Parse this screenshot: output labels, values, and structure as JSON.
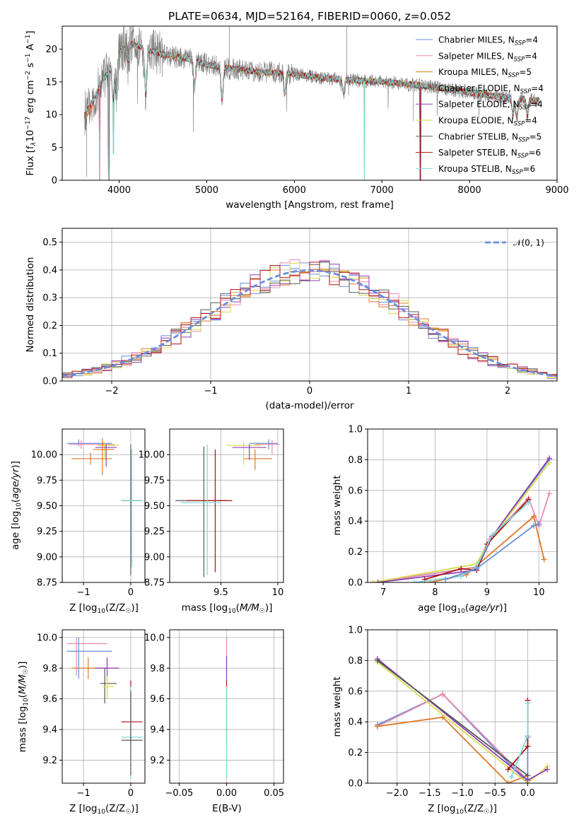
{
  "figure_title": "PLATE=0634, MJD=52164, FIBERID=0060, z=0.052",
  "colors": {
    "chabrier_miles": "#6b8fd6",
    "salpeter_miles": "#e88bb0",
    "kroupa_miles": "#c8841a",
    "chabrier_elodie": "#555555",
    "salpeter_elodie": "#8e3fb5",
    "kroupa_elodie": "#d6dc4a",
    "chabrier_stelib": "#5a5a5a",
    "salpeter_stelib": "#b01010",
    "kroupa_stelib": "#7fd8d8",
    "orange": "#e07828",
    "gauss": "#6a8fe0"
  },
  "chart_data": [
    {
      "type": "line",
      "panel": "spectrum",
      "xlabel": "wavelength [Angstrom, rest frame]",
      "ylabel": "Flux [f_λ 10^-17 erg cm^-2 s^-1 A^-1]",
      "xlim": [
        3350,
        9000
      ],
      "ylim": [
        0,
        23.5
      ],
      "xticks": [
        4000,
        5000,
        6000,
        7000,
        8000,
        9000
      ],
      "yticks": [
        0,
        5,
        10,
        15,
        20
      ],
      "grid": false,
      "legend_position": "top-right",
      "legend": [
        {
          "text": "Chabrier MILES, N_SSP=4",
          "color_key": "chabrier_miles"
        },
        {
          "text": "Salpeter MILES, N_SSP=4",
          "color_key": "salpeter_miles"
        },
        {
          "text": "Kroupa MILES, N_SSP=5",
          "color_key": "kroupa_miles"
        },
        {
          "text": "Chabrier ELODIE, N_SSP=4",
          "color_key": "chabrier_elodie"
        },
        {
          "text": "Salpeter ELODIE, N_SSP=4",
          "color_key": "salpeter_elodie"
        },
        {
          "text": "Kroupa ELODIE, N_SSP=4",
          "color_key": "kroupa_elodie"
        },
        {
          "text": "Chabrier STELIB, N_SSP=5",
          "color_key": "chabrier_stelib"
        },
        {
          "text": "Salpeter STELIB, N_SSP=6",
          "color_key": "salpeter_stelib"
        },
        {
          "text": "Kroupa STELIB, N_SSP=6",
          "color_key": "kroupa_stelib"
        }
      ],
      "continuum": {
        "x": [
          3600,
          3700,
          3800,
          3900,
          4000,
          4100,
          4300,
          4500,
          4800,
          5000,
          5300,
          5600,
          6000,
          6300,
          6600,
          7000,
          7400,
          7800,
          8200,
          8600,
          8800
        ],
        "y": [
          10,
          12,
          15,
          17,
          19.5,
          21,
          20,
          19.2,
          18.5,
          17.6,
          17,
          16.5,
          16.2,
          15.6,
          15.3,
          15,
          14.5,
          13.8,
          13,
          12.4,
          12.1
        ]
      },
      "absorption_features": [
        {
          "x": 3933,
          "depth": 6
        },
        {
          "x": 3968,
          "depth": 5
        },
        {
          "x": 4102,
          "depth": 3
        },
        {
          "x": 4304,
          "depth": 7
        },
        {
          "x": 4861,
          "depth": 4
        },
        {
          "x": 5175,
          "depth": 5
        },
        {
          "x": 5890,
          "depth": 3
        },
        {
          "x": 6563,
          "depth": 2
        },
        {
          "x": 8498,
          "depth": 2.5
        },
        {
          "x": 8542,
          "depth": 3
        },
        {
          "x": 8662,
          "depth": 2.5
        }
      ],
      "model_dropouts": [
        {
          "x": 3775,
          "to": 0
        },
        {
          "x": 3880,
          "to": 0
        },
        {
          "x": 3935,
          "to": 4
        },
        {
          "x": 6800,
          "to": 0
        },
        {
          "x": 7440,
          "to": 0
        }
      ]
    },
    {
      "type": "line",
      "panel": "residuals",
      "xlabel": "(data-model)/error",
      "ylabel": "Normed distribution",
      "xlim": [
        -2.5,
        2.5
      ],
      "ylim": [
        0,
        0.55
      ],
      "xticks": [
        -2,
        -1,
        0,
        1,
        2
      ],
      "yticks": [
        0.0,
        0.1,
        0.2,
        0.3,
        0.4,
        0.5
      ],
      "grid": true,
      "legend_position": "top-right",
      "legend": [
        {
          "text": "𝒩(0, 1)",
          "color_key": "gauss"
        }
      ],
      "bin_width": 0.1,
      "histograms": [
        {
          "color_key": "chabrier_miles",
          "seed": 3
        },
        {
          "color_key": "salpeter_miles",
          "seed": 7
        },
        {
          "color_key": "orange",
          "seed": 11
        },
        {
          "color_key": "salpeter_elodie",
          "seed": 13
        },
        {
          "color_key": "kroupa_elodie",
          "seed": 17
        },
        {
          "color_key": "chabrier_stelib",
          "seed": 19
        },
        {
          "color_key": "salpeter_stelib",
          "seed": 23
        }
      ]
    },
    {
      "type": "scatter",
      "panel": "age_vs_Z",
      "xlabel": "Z [log10(Z/Z☉)]",
      "ylabel": "age  [log10(age/yr)]",
      "xlim": [
        -1.45,
        0.3
      ],
      "ylim": [
        8.75,
        10.25
      ],
      "xticks": [
        -1,
        0
      ],
      "yticks": [
        8.75,
        9.0,
        9.25,
        9.5,
        9.75,
        10.0
      ],
      "grid": true,
      "points": [
        {
          "x": -1.1,
          "y": 10.11,
          "ex": [
            -1.35,
            -0.4
          ],
          "ey": [
            10.08,
            10.15
          ],
          "color_key": "chabrier_miles"
        },
        {
          "x": -1.05,
          "y": 10.1,
          "ex": [
            -1.3,
            -0.35
          ],
          "ey": [
            10.06,
            10.14
          ],
          "color_key": "salpeter_miles"
        },
        {
          "x": -0.85,
          "y": 9.96,
          "ex": [
            -1.25,
            -0.4
          ],
          "ey": [
            9.9,
            10.02
          ],
          "color_key": "orange"
        },
        {
          "x": -0.55,
          "y": 10.09,
          "ex": [
            -0.7,
            -0.25
          ],
          "ey": [
            9.95,
            10.12
          ],
          "color_key": "kroupa_elodie"
        },
        {
          "x": -0.52,
          "y": 10.07,
          "ex": [
            -0.75,
            -0.3
          ],
          "ey": [
            9.88,
            10.1
          ],
          "color_key": "salpeter_elodie"
        },
        {
          "x": -0.6,
          "y": 10.05,
          "ex": [
            -0.8,
            -0.35
          ],
          "ey": [
            9.8,
            10.16
          ],
          "color_key": "orange"
        },
        {
          "x": 0.0,
          "y": 9.55,
          "ex": [
            -0.2,
            0.25
          ],
          "ey": [
            8.82,
            10.1
          ],
          "color_key": "chabrier_stelib"
        },
        {
          "x": 0.02,
          "y": 9.55,
          "ex": [
            -0.2,
            0.25
          ],
          "ey": [
            8.9,
            10.05
          ],
          "color_key": "kroupa_stelib"
        }
      ]
    },
    {
      "type": "scatter",
      "panel": "age_vs_mass",
      "xlabel": "mass [log10(M/M☉)]",
      "ylabel": "",
      "xlim": [
        9.05,
        10.05
      ],
      "ylim": [
        8.75,
        10.25
      ],
      "xticks": [
        9.5,
        10.0
      ],
      "yticks": [
        8.75,
        9.0,
        9.25,
        9.5,
        9.75,
        10.0
      ],
      "grid": true,
      "points": [
        {
          "x": 9.92,
          "y": 10.11,
          "ex": [
            9.75,
            10.0
          ],
          "ey": [
            10.05,
            10.15
          ],
          "color_key": "chabrier_miles"
        },
        {
          "x": 9.95,
          "y": 10.1,
          "ex": [
            9.8,
            10.02
          ],
          "ey": [
            10.0,
            10.14
          ],
          "color_key": "salpeter_miles"
        },
        {
          "x": 9.8,
          "y": 9.96,
          "ex": [
            9.7,
            9.95
          ],
          "ey": [
            9.85,
            10.05
          ],
          "color_key": "orange"
        },
        {
          "x": 9.7,
          "y": 10.09,
          "ex": [
            9.55,
            9.85
          ],
          "ey": [
            9.9,
            10.12
          ],
          "color_key": "kroupa_elodie"
        },
        {
          "x": 9.75,
          "y": 10.07,
          "ex": [
            9.6,
            9.9
          ],
          "ey": [
            9.95,
            10.1
          ],
          "color_key": "salpeter_elodie"
        },
        {
          "x": 9.35,
          "y": 9.55,
          "ex": [
            9.1,
            9.55
          ],
          "ey": [
            8.8,
            10.08
          ],
          "color_key": "chabrier_stelib"
        },
        {
          "x": 9.45,
          "y": 9.55,
          "ex": [
            9.2,
            9.6
          ],
          "ey": [
            8.85,
            10.05
          ],
          "color_key": "salpeter_stelib"
        },
        {
          "x": 9.38,
          "y": 9.53,
          "ex": [
            9.15,
            9.5
          ],
          "ey": [
            8.82,
            10.1
          ],
          "color_key": "kroupa_stelib"
        }
      ]
    },
    {
      "type": "line",
      "panel": "mass_weight_vs_age",
      "xlabel": "age  [log10(age/yr)]",
      "ylabel": "mass weight",
      "xlim": [
        6.7,
        10.35
      ],
      "ylim": [
        0,
        1.0
      ],
      "xticks": [
        7,
        8,
        9,
        10
      ],
      "yticks": [
        0.0,
        0.2,
        0.4,
        0.6,
        0.8,
        1.0
      ],
      "grid": true,
      "series": [
        {
          "color_key": "chabrier_miles",
          "x": [
            6.8,
            8.8,
            9.1,
            10.2
          ],
          "y": [
            0.0,
            0.1,
            0.3,
            0.8
          ]
        },
        {
          "color_key": "salpeter_miles",
          "x": [
            6.8,
            8.8,
            9.05,
            9.8,
            10.0,
            10.2
          ],
          "y": [
            0.0,
            0.1,
            0.28,
            0.55,
            0.37,
            0.58
          ]
        },
        {
          "color_key": "orange",
          "x": [
            7.9,
            8.6,
            9.9,
            10.1
          ],
          "y": [
            0.0,
            0.05,
            0.43,
            0.15
          ]
        },
        {
          "color_key": "kroupa_elodie",
          "x": [
            6.8,
            8.8,
            9.0,
            10.2
          ],
          "y": [
            0.0,
            0.12,
            0.25,
            0.78
          ]
        },
        {
          "color_key": "salpeter_elodie",
          "x": [
            6.9,
            8.8,
            9.1,
            10.2
          ],
          "y": [
            0.0,
            0.08,
            0.3,
            0.81
          ]
        },
        {
          "color_key": "salpeter_stelib",
          "x": [
            7.8,
            8.5,
            8.8,
            9.0,
            9.8
          ],
          "y": [
            0.02,
            0.09,
            0.08,
            0.25,
            0.54
          ]
        },
        {
          "color_key": "kroupa_stelib",
          "x": [
            7.6,
            8.5,
            8.8,
            9.1,
            9.8
          ],
          "y": [
            0.0,
            0.04,
            0.1,
            0.31,
            0.52
          ]
        },
        {
          "color_key": "chabrier_miles",
          "x": [
            8.2,
            8.8,
            9.9,
            10.0
          ],
          "y": [
            0.02,
            0.09,
            0.37,
            0.38
          ]
        }
      ]
    },
    {
      "type": "scatter",
      "panel": "mass_vs_Z",
      "xlabel": "Z [log10(Z/Z☉)]",
      "ylabel": "mass [log10(M/M☉)]",
      "xlim": [
        -1.45,
        0.3
      ],
      "ylim": [
        9.05,
        10.05
      ],
      "xticks": [
        -1,
        0
      ],
      "yticks": [
        9.2,
        9.4,
        9.6,
        9.8,
        10.0
      ],
      "grid": true,
      "points": [
        {
          "x": -1.15,
          "y": 9.96,
          "ex": [
            -1.35,
            -0.5
          ],
          "ey": [
            9.75,
            10.0
          ],
          "color_key": "salpeter_miles"
        },
        {
          "x": -1.1,
          "y": 9.91,
          "ex": [
            -1.35,
            -0.4
          ],
          "ey": [
            9.73,
            10.0
          ],
          "color_key": "chabrier_miles"
        },
        {
          "x": -0.9,
          "y": 9.8,
          "ex": [
            -1.25,
            -0.45
          ],
          "ey": [
            9.73,
            9.87
          ],
          "color_key": "orange"
        },
        {
          "x": -0.5,
          "y": 9.8,
          "ex": [
            -0.75,
            -0.25
          ],
          "ey": [
            9.72,
            9.87
          ],
          "color_key": "salpeter_elodie"
        },
        {
          "x": -0.55,
          "y": 9.7,
          "ex": [
            -0.65,
            -0.3
          ],
          "ey": [
            9.57,
            9.8
          ],
          "color_key": "chabrier_elodie"
        },
        {
          "x": -0.5,
          "y": 9.68,
          "ex": [
            -0.6,
            -0.35
          ],
          "ey": [
            9.6,
            9.75
          ],
          "color_key": "kroupa_elodie"
        },
        {
          "x": 0.0,
          "y": 9.45,
          "ex": [
            -0.2,
            0.25
          ],
          "ey": [
            9.3,
            9.72
          ],
          "color_key": "salpeter_stelib"
        },
        {
          "x": 0.0,
          "y": 9.35,
          "ex": [
            -0.2,
            0.25
          ],
          "ey": [
            9.08,
            9.68
          ],
          "color_key": "kroupa_stelib"
        },
        {
          "x": 0.0,
          "y": 9.33,
          "ex": [
            -0.2,
            0.25
          ],
          "ey": [
            9.1,
            9.65
          ],
          "color_key": "chabrier_stelib"
        }
      ]
    },
    {
      "type": "scatter",
      "panel": "mass_vs_ebv",
      "xlabel": "E(B-V)",
      "ylabel": "",
      "xlim": [
        -0.06,
        0.06
      ],
      "ylim": [
        9.05,
        10.05
      ],
      "xticks": [
        -0.05,
        0.0,
        0.05
      ],
      "xtick_labels": [
        "−0.05",
        "0.00",
        "0.05"
      ],
      "yticks": [
        9.2,
        9.4,
        9.6,
        9.8,
        10.0
      ],
      "grid": true,
      "points": [
        {
          "x": 0.0,
          "y": 9.9,
          "ey": [
            9.75,
            10.0
          ],
          "color_key": "salpeter_miles"
        },
        {
          "x": 0.0,
          "y": 9.8,
          "ey": [
            9.72,
            9.88
          ],
          "color_key": "salpeter_elodie"
        },
        {
          "x": 0.0,
          "y": 9.45,
          "ey": [
            9.3,
            9.72
          ],
          "color_key": "salpeter_stelib"
        },
        {
          "x": 0.0,
          "y": 9.35,
          "ey": [
            9.08,
            9.68
          ],
          "color_key": "kroupa_stelib"
        }
      ]
    },
    {
      "type": "line",
      "panel": "mass_weight_vs_Z",
      "xlabel": "Z [log10(Z/Z☉)]",
      "ylabel": "mass weight",
      "xlim": [
        -2.45,
        0.45
      ],
      "ylim": [
        0,
        1.0
      ],
      "xticks": [
        -2.0,
        -1.5,
        -1.0,
        -0.5,
        0.0
      ],
      "xtick_labels": [
        "−2.0",
        "−1.5",
        "−1.0",
        "−0.5",
        "0.0"
      ],
      "yticks": [
        0.0,
        0.2,
        0.4,
        0.6,
        0.8,
        1.0
      ],
      "grid": true,
      "series": [
        {
          "color_key": "chabrier_miles",
          "x": [
            -2.3,
            -1.3,
            0.0,
            0.0
          ],
          "y": [
            0.38,
            0.58,
            0.0,
            0.3
          ]
        },
        {
          "color_key": "salpeter_miles",
          "x": [
            -2.3,
            -1.3,
            0.0
          ],
          "y": [
            0.37,
            0.58,
            0.02
          ]
        },
        {
          "color_key": "orange",
          "x": [
            -2.3,
            -1.3,
            -0.3,
            0.0
          ],
          "y": [
            0.37,
            0.43,
            0.0,
            0.05
          ]
        },
        {
          "color_key": "kroupa_elodie",
          "x": [
            -2.3,
            0.0,
            0.3
          ],
          "y": [
            0.79,
            0.0,
            0.11
          ]
        },
        {
          "color_key": "salpeter_elodie",
          "x": [
            -2.3,
            0.0,
            0.3
          ],
          "y": [
            0.81,
            0.02,
            0.09
          ]
        },
        {
          "color_key": "chabrier_elodie",
          "x": [
            -2.3,
            0.0
          ],
          "y": [
            0.8,
            0.05
          ]
        },
        {
          "color_key": "salpeter_stelib",
          "x": [
            -0.3,
            0.0,
            0.0
          ],
          "y": [
            0.09,
            0.24,
            0.54
          ]
        },
        {
          "color_key": "kroupa_stelib",
          "x": [
            -0.25,
            0.0,
            0.0
          ],
          "y": [
            0.04,
            0.31,
            0.52
          ]
        }
      ]
    }
  ]
}
